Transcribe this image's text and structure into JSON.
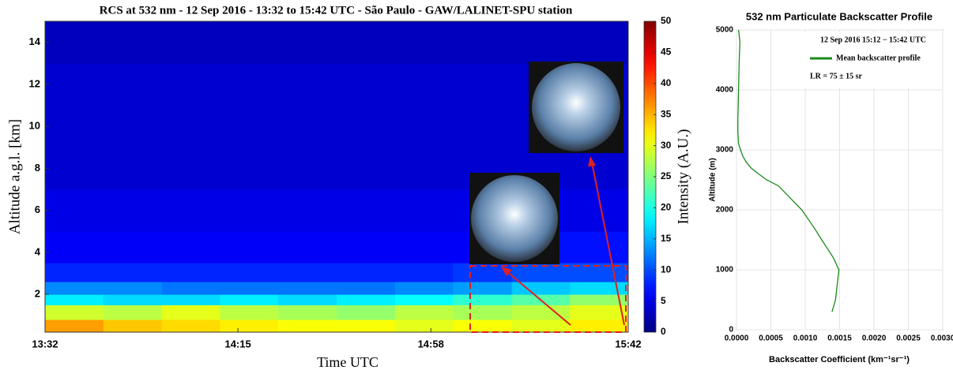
{
  "chart_data": [
    {
      "type": "heatmap",
      "title": "RCS at 532 nm - 12 Sep 2016 - 13:32 to 15:42 UTC - São Paulo - GAW/LALINET-SPU station",
      "xlabel": "Time UTC",
      "ylabel": "Altitude a.g.l. [km]",
      "colorbar_label": "Intensity (A.U.)",
      "colormap": "jet",
      "x_bins": [
        812,
        825,
        838,
        851,
        864,
        877,
        890,
        903,
        916,
        929,
        942
      ],
      "y_bins": [
        0.2,
        0.8,
        1.5,
        2,
        2.6,
        3.5,
        5,
        7,
        9,
        11,
        13,
        15
      ],
      "z": [
        [
          36,
          34,
          33,
          32,
          31,
          31,
          30,
          31,
          30,
          32
        ],
        [
          29,
          28,
          30,
          28,
          27,
          26,
          28,
          27,
          28,
          30
        ],
        [
          18,
          17,
          17,
          18,
          17,
          18,
          19,
          21,
          23,
          26
        ],
        [
          13,
          13,
          12,
          12,
          12,
          12,
          13,
          14,
          16,
          17
        ],
        [
          8,
          8,
          8,
          8,
          8,
          8,
          8,
          9,
          10,
          10
        ],
        [
          6,
          6,
          6,
          6,
          6,
          6,
          6,
          6,
          7,
          7
        ],
        [
          5,
          5,
          5,
          5,
          5,
          5,
          5,
          5,
          5,
          5
        ],
        [
          4,
          4,
          4,
          4,
          4,
          4,
          4,
          4,
          4,
          4
        ],
        [
          4,
          4,
          4,
          4,
          4,
          4,
          4,
          4,
          4,
          4
        ],
        [
          4,
          4,
          4,
          4,
          4,
          4,
          4,
          4,
          4,
          4
        ],
        [
          3,
          3,
          3,
          3,
          3,
          3,
          3,
          3,
          3,
          3
        ]
      ],
      "xlim": [
        812,
        942
      ],
      "xticks": [
        {
          "value": 812,
          "label": "13:32"
        },
        {
          "value": 855,
          "label": "14:15"
        },
        {
          "value": 898,
          "label": "14:58"
        },
        {
          "value": 942,
          "label": "15:42"
        }
      ],
      "ylim": [
        0.2,
        15
      ],
      "yticks": [
        2,
        4,
        6,
        8,
        10,
        12,
        14
      ],
      "clim": [
        0,
        50
      ],
      "cticks": [
        0,
        5,
        10,
        15,
        20,
        25,
        30,
        35,
        40,
        45,
        50
      ]
    },
    {
      "type": "line",
      "title": "532 nm Particulate Backscatter Profile",
      "xlabel": "Backscatter Coefficient (km⁻¹sr⁻¹)",
      "ylabel": "Altitude (m)",
      "legend_header": "12 Sep 2016 15:12 − 15:42 UTC",
      "annotation": "LR = 75 ± 15 sr",
      "grid": true,
      "legend": "upper right",
      "series": [
        {
          "name": "Mean backscatter profile",
          "color": "#1a8a1a",
          "x": [
            0.00139,
            0.00144,
            0.00147,
            0.00149,
            0.00141,
            0.00124,
            0.00113,
            0.00095,
            0.00078,
            0.00061,
            0.00044,
            0.00032,
            0.00021,
            0.00014,
            9e-05,
            6e-05,
            3e-05,
            2e-05,
            2e-05,
            3e-05,
            4e-05,
            5e-05,
            3e-05
          ],
          "values": [
            300,
            500,
            800,
            1000,
            1200,
            1500,
            1700,
            2000,
            2200,
            2400,
            2500,
            2600,
            2700,
            2800,
            2900,
            3000,
            3100,
            3300,
            3500,
            4000,
            4500,
            4800,
            5000
          ]
        }
      ],
      "xlim": [
        0,
        0.003
      ],
      "xticks": [
        {
          "value": 0,
          "label": "0.0000"
        },
        {
          "value": 0.0005,
          "label": "0.0005"
        },
        {
          "value": 0.001,
          "label": "0.0010"
        },
        {
          "value": 0.0015,
          "label": "0.0015"
        },
        {
          "value": 0.002,
          "label": "0.0020"
        },
        {
          "value": 0.0025,
          "label": "0.0025"
        },
        {
          "value": 0.003,
          "label": "0.0030"
        }
      ],
      "ylim": [
        0,
        5000
      ],
      "yticks": [
        0,
        1000,
        2000,
        3000,
        4000,
        5000
      ]
    }
  ]
}
